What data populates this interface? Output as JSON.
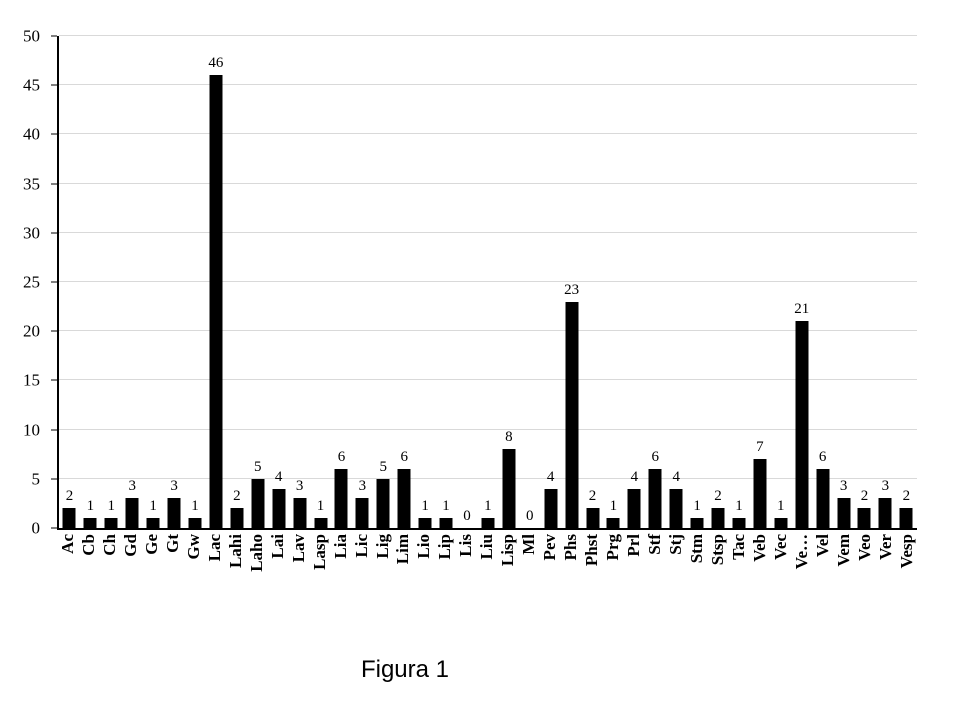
{
  "caption": "Figura 1",
  "colors": {
    "bar": "#000000",
    "gridline": "#d9d9d9",
    "axis": "#000000",
    "background": "#ffffff",
    "text": "#000000"
  },
  "chart_data": {
    "type": "bar",
    "title": "",
    "xlabel": "",
    "ylabel": "",
    "ylim": [
      0,
      50
    ],
    "yticks": [
      0,
      5,
      10,
      15,
      20,
      25,
      30,
      35,
      40,
      45,
      50
    ],
    "grid": true,
    "legend": false,
    "data_labels": true,
    "categories": [
      "Ac",
      "Cb",
      "Ch",
      "Gd",
      "Ge",
      "Gt",
      "Gw",
      "Lac",
      "Lahi",
      "Laho",
      "Lai",
      "Lav",
      "Lasp",
      "Lia",
      "Lic",
      "Lig",
      "Lim",
      "Lio",
      "Lip",
      "Lis",
      "Liu",
      "Lisp",
      "Ml",
      "Pev",
      "Phs",
      "Phst",
      "Prg",
      "Prl",
      "Stf",
      "Stj",
      "Stm",
      "Stsp",
      "Tac",
      "Veb",
      "Vec",
      "Ve…",
      "Vel",
      "Vem",
      "Veo",
      "Ver",
      "Vesp"
    ],
    "values": [
      2,
      1,
      1,
      3,
      1,
      3,
      1,
      46,
      2,
      5,
      4,
      3,
      1,
      6,
      3,
      5,
      6,
      1,
      1,
      0,
      1,
      8,
      0,
      4,
      23,
      2,
      1,
      4,
      6,
      4,
      1,
      2,
      1,
      7,
      1,
      21,
      6,
      3,
      2,
      3,
      2
    ]
  }
}
